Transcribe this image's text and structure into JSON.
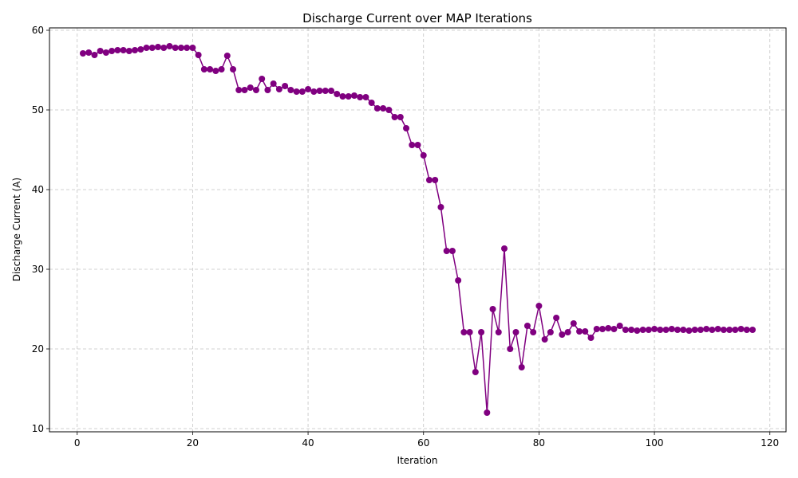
{
  "chart_data": {
    "type": "line",
    "title": "Discharge Current over MAP Iterations",
    "xlabel": "Iteration",
    "ylabel": "Discharge Current (A)",
    "xlim": [
      -4.8,
      122.8
    ],
    "ylim": [
      9.6,
      60.3
    ],
    "xticks": [
      0,
      20,
      40,
      60,
      80,
      100,
      120
    ],
    "yticks": [
      10,
      20,
      30,
      40,
      50,
      60
    ],
    "grid": true,
    "color": "#800080",
    "marker": "circle",
    "series": [
      {
        "x": [
          1,
          2,
          3,
          4,
          5,
          6,
          7,
          8,
          9,
          10,
          11,
          12,
          13,
          14,
          15,
          16,
          17,
          18,
          19,
          20,
          21,
          22,
          23,
          24,
          25,
          26,
          27,
          28,
          29,
          30,
          31,
          32,
          33,
          34,
          35,
          36,
          37,
          38,
          39,
          40,
          41,
          42,
          43,
          44,
          45,
          46,
          47,
          48,
          49,
          50,
          51,
          52,
          53,
          54,
          55,
          56,
          57,
          58,
          59,
          60,
          61,
          62,
          63,
          64,
          65,
          66,
          67,
          68,
          69,
          70,
          71,
          72,
          73,
          74,
          75,
          76,
          77,
          78,
          79,
          80,
          81,
          82,
          83,
          84,
          85,
          86,
          87,
          88,
          89,
          90,
          91,
          92,
          93,
          94,
          95,
          96,
          97,
          98,
          99,
          100,
          101,
          102,
          103,
          104,
          105,
          106,
          107,
          108,
          109,
          110,
          111,
          112,
          113,
          114,
          115,
          116,
          117
        ],
        "y": [
          57.1,
          57.2,
          56.9,
          57.4,
          57.2,
          57.4,
          57.5,
          57.5,
          57.4,
          57.5,
          57.6,
          57.8,
          57.8,
          57.9,
          57.8,
          58.0,
          57.8,
          57.8,
          57.8,
          57.8,
          56.9,
          55.1,
          55.1,
          54.9,
          55.1,
          56.8,
          55.1,
          52.5,
          52.5,
          52.8,
          52.5,
          53.9,
          52.5,
          53.3,
          52.6,
          53.0,
          52.5,
          52.3,
          52.3,
          52.6,
          52.3,
          52.4,
          52.4,
          52.4,
          52.0,
          51.7,
          51.7,
          51.8,
          51.6,
          51.6,
          50.9,
          50.2,
          50.2,
          50.0,
          49.1,
          49.1,
          47.7,
          45.6,
          45.6,
          44.3,
          41.2,
          41.2,
          37.8,
          32.3,
          32.3,
          28.6,
          22.1,
          22.1,
          17.1,
          22.1,
          12.0,
          25.0,
          22.1,
          32.6,
          20.0,
          22.1,
          17.7,
          22.9,
          22.1,
          25.4,
          21.2,
          22.1,
          23.9,
          21.8,
          22.1,
          23.2,
          22.2,
          22.2,
          21.4,
          22.5,
          22.5,
          22.6,
          22.5,
          22.9,
          22.4,
          22.4,
          22.3,
          22.4,
          22.4,
          22.5,
          22.4,
          22.4,
          22.5,
          22.4,
          22.4,
          22.3,
          22.4,
          22.4,
          22.5,
          22.4,
          22.5,
          22.4,
          22.4,
          22.4,
          22.5,
          22.4,
          22.4
        ]
      }
    ]
  }
}
